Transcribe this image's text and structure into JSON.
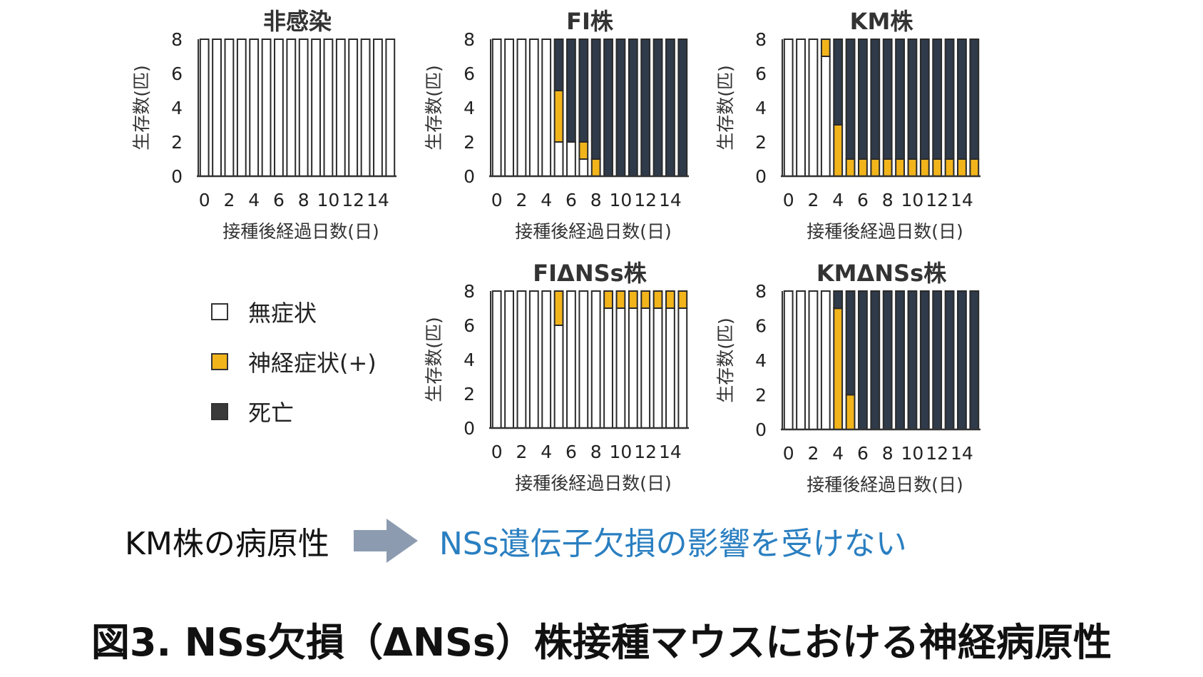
{
  "colors": {
    "asymptomatic": "#ffffff",
    "neuro": "#f2b41b",
    "death": "#2f3a4a"
  },
  "axis": {
    "ylabel": "生存数(匹)",
    "xlabel": "接種後経過日数(日)",
    "yticks": [
      "0",
      "2",
      "4",
      "6",
      "8"
    ],
    "xticks": [
      "0",
      "2",
      "4",
      "6",
      "8",
      "10",
      "12",
      "14"
    ]
  },
  "chart_data": [
    {
      "type": "bar",
      "stacked": true,
      "title": "非感染",
      "xlabel": "接種後経過日数(日)",
      "ylabel": "生存数(匹)",
      "ylim": [
        0,
        8
      ],
      "categories": [
        0,
        1,
        2,
        3,
        4,
        5,
        6,
        7,
        8,
        9,
        10,
        11,
        12,
        13,
        14,
        15
      ],
      "series": [
        {
          "name": "無症状",
          "values": [
            8,
            8,
            8,
            8,
            8,
            8,
            8,
            8,
            8,
            8,
            8,
            8,
            8,
            8,
            8,
            8
          ]
        },
        {
          "name": "神経症状(+)",
          "values": [
            0,
            0,
            0,
            0,
            0,
            0,
            0,
            0,
            0,
            0,
            0,
            0,
            0,
            0,
            0,
            0
          ]
        },
        {
          "name": "死亡",
          "values": [
            0,
            0,
            0,
            0,
            0,
            0,
            0,
            0,
            0,
            0,
            0,
            0,
            0,
            0,
            0,
            0
          ]
        }
      ]
    },
    {
      "type": "bar",
      "stacked": true,
      "title": "FI株",
      "xlabel": "接種後経過日数(日)",
      "ylabel": "生存数(匹)",
      "ylim": [
        0,
        8
      ],
      "categories": [
        0,
        1,
        2,
        3,
        4,
        5,
        6,
        7,
        8,
        9,
        10,
        11,
        12,
        13,
        14,
        15
      ],
      "series": [
        {
          "name": "無症状",
          "values": [
            8,
            8,
            8,
            8,
            8,
            2,
            2,
            1,
            0,
            0,
            0,
            0,
            0,
            0,
            0,
            0
          ]
        },
        {
          "name": "神経症状(+)",
          "values": [
            0,
            0,
            0,
            0,
            0,
            3,
            0,
            1,
            1,
            0,
            0,
            0,
            0,
            0,
            0,
            0
          ]
        },
        {
          "name": "死亡",
          "values": [
            0,
            0,
            0,
            0,
            0,
            3,
            6,
            6,
            7,
            8,
            8,
            8,
            8,
            8,
            8,
            8
          ]
        }
      ]
    },
    {
      "type": "bar",
      "stacked": true,
      "title": "KM株",
      "xlabel": "接種後経過日数(日)",
      "ylabel": "生存数(匹)",
      "ylim": [
        0,
        8
      ],
      "categories": [
        0,
        1,
        2,
        3,
        4,
        5,
        6,
        7,
        8,
        9,
        10,
        11,
        12,
        13,
        14,
        15
      ],
      "series": [
        {
          "name": "無症状",
          "values": [
            8,
            8,
            8,
            7,
            0,
            0,
            0,
            0,
            0,
            0,
            0,
            0,
            0,
            0,
            0,
            0
          ]
        },
        {
          "name": "神経症状(+)",
          "values": [
            0,
            0,
            0,
            1,
            3,
            1,
            1,
            1,
            1,
            1,
            1,
            1,
            1,
            1,
            1,
            1
          ]
        },
        {
          "name": "死亡",
          "values": [
            0,
            0,
            0,
            0,
            5,
            7,
            7,
            7,
            7,
            7,
            7,
            7,
            7,
            7,
            7,
            7
          ]
        }
      ]
    },
    {
      "type": "bar",
      "stacked": true,
      "title": "FIΔNSs株",
      "xlabel": "接種後経過日数(日)",
      "ylabel": "生存数(匹)",
      "ylim": [
        0,
        8
      ],
      "categories": [
        0,
        1,
        2,
        3,
        4,
        5,
        6,
        7,
        8,
        9,
        10,
        11,
        12,
        13,
        14,
        15
      ],
      "series": [
        {
          "name": "無症状",
          "values": [
            8,
            8,
            8,
            8,
            8,
            6,
            8,
            8,
            8,
            7,
            7,
            7,
            7,
            7,
            7,
            7
          ]
        },
        {
          "name": "神経症状(+)",
          "values": [
            0,
            0,
            0,
            0,
            0,
            2,
            0,
            0,
            0,
            1,
            1,
            1,
            1,
            1,
            1,
            1
          ]
        },
        {
          "name": "死亡",
          "values": [
            0,
            0,
            0,
            0,
            0,
            0,
            0,
            0,
            0,
            0,
            0,
            0,
            0,
            0,
            0,
            0
          ]
        }
      ]
    },
    {
      "type": "bar",
      "stacked": true,
      "title": "KMΔNSs株",
      "xlabel": "接種後経過日数(日)",
      "ylabel": "生存数(匹)",
      "ylim": [
        0,
        8
      ],
      "categories": [
        0,
        1,
        2,
        3,
        4,
        5,
        6,
        7,
        8,
        9,
        10,
        11,
        12,
        13,
        14,
        15
      ],
      "series": [
        {
          "name": "無症状",
          "values": [
            8,
            8,
            8,
            8,
            0,
            0,
            0,
            0,
            0,
            0,
            0,
            0,
            0,
            0,
            0,
            0
          ]
        },
        {
          "name": "神経症状(+)",
          "values": [
            0,
            0,
            0,
            0,
            7,
            2,
            0,
            0,
            0,
            0,
            0,
            0,
            0,
            0,
            0,
            0
          ]
        },
        {
          "name": "死亡",
          "values": [
            0,
            0,
            0,
            0,
            1,
            6,
            8,
            8,
            8,
            8,
            8,
            8,
            8,
            8,
            8,
            8
          ]
        }
      ]
    }
  ],
  "legend": [
    {
      "label": "無症状",
      "color": "#ffffff"
    },
    {
      "label": "神経症状(+)",
      "color": "#f2b41b"
    },
    {
      "label": "死亡",
      "color": "#3a3a3a"
    }
  ],
  "conclusion": {
    "left": "KM株の病原性",
    "right": "NSs遺伝子欠損の影響を受けない"
  },
  "caption": "図3. NSs欠損（ΔNSs）株接種マウスにおける神経病原性"
}
